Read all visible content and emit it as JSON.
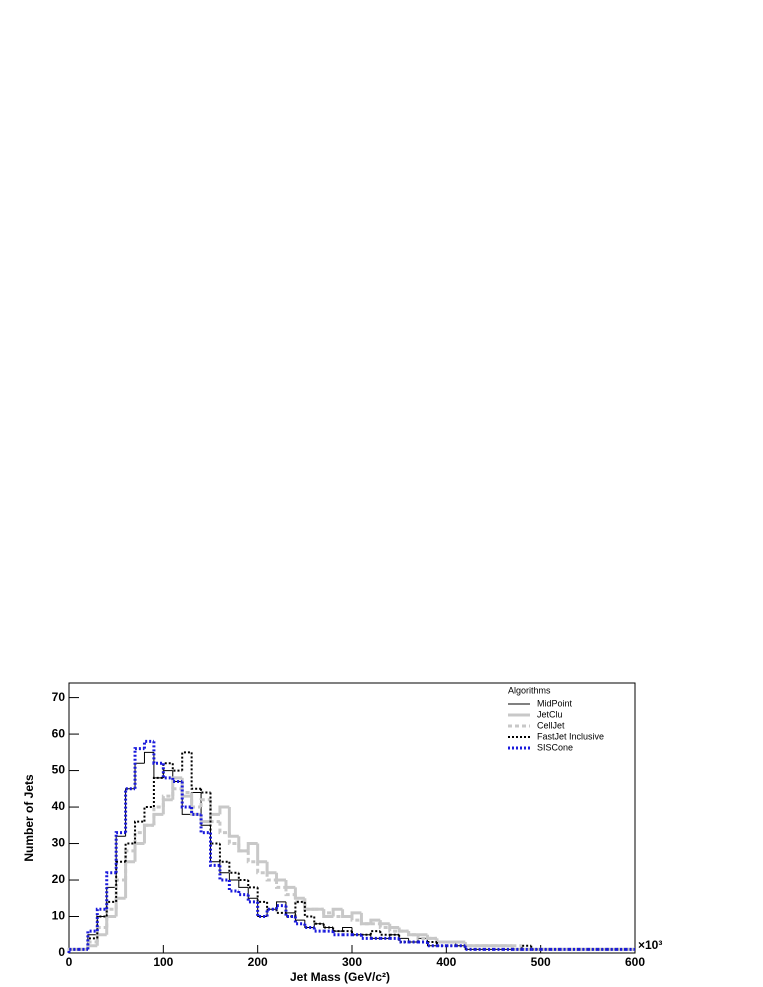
{
  "chart_data": {
    "type": "histogram",
    "x_label": "Jet Mass (GeV/c²)",
    "y_label": "Number of Jets",
    "x_multiplier": "×10³",
    "legend_title": "Algorithms",
    "legend": "top-right",
    "bins": [
      0,
      10,
      20,
      30,
      40,
      50,
      60,
      70,
      80,
      90,
      100,
      110,
      120,
      130,
      140,
      150,
      160,
      170,
      180,
      190,
      200,
      210,
      220,
      230,
      240,
      250,
      260,
      270,
      280,
      290,
      300,
      310,
      320,
      330,
      340,
      350,
      360,
      370,
      380,
      390,
      400,
      410,
      420,
      430,
      440,
      450,
      460,
      470,
      480,
      490,
      500,
      510,
      520,
      530,
      540,
      550,
      560,
      570,
      580,
      590,
      600
    ],
    "xlim": [
      0,
      600
    ],
    "xticks": [
      0,
      100,
      200,
      300,
      400,
      500,
      600
    ],
    "ylim": [
      0,
      74
    ],
    "yticks": [
      0,
      10,
      20,
      30,
      40,
      50,
      60,
      70
    ],
    "series": [
      {
        "name": "MidPoint",
        "color": "#000000",
        "values": [
          1,
          1,
          5,
          10,
          18,
          32,
          45,
          52,
          55,
          48,
          50,
          47,
          38,
          44,
          35,
          25,
          22,
          20,
          18,
          15,
          10,
          12,
          14,
          11,
          9,
          7,
          8,
          7,
          6,
          7,
          5,
          5,
          4,
          4,
          5,
          4,
          3,
          4,
          2,
          3,
          3,
          2,
          1,
          1,
          1,
          1,
          1,
          1,
          1,
          1,
          1,
          1,
          1,
          1,
          1,
          1,
          1,
          1,
          1,
          1
        ]
      },
      {
        "name": "JetClu",
        "color": "#c8c8c8",
        "values": [
          1,
          1,
          2,
          5,
          10,
          15,
          25,
          30,
          35,
          38,
          42,
          48,
          43,
          38,
          36,
          38,
          40,
          32,
          28,
          30,
          25,
          22,
          20,
          18,
          15,
          12,
          12,
          10,
          12,
          10,
          11,
          8,
          9,
          8,
          7,
          6,
          5,
          5,
          4,
          3,
          3,
          3,
          2,
          2,
          2,
          2,
          2,
          1,
          1,
          1,
          1,
          1,
          1,
          1,
          1,
          1,
          1,
          1,
          1,
          1
        ]
      },
      {
        "name": "CellJet",
        "color": "#c8c8c8",
        "values": [
          1,
          1,
          3,
          7,
          12,
          20,
          28,
          33,
          35,
          40,
          43,
          45,
          44,
          40,
          42,
          36,
          33,
          30,
          28,
          25,
          22,
          20,
          18,
          16,
          14,
          12,
          12,
          11,
          10,
          10,
          9,
          8,
          8,
          7,
          6,
          6,
          5,
          4,
          4,
          3,
          3,
          3,
          2,
          2,
          2,
          2,
          2,
          2,
          1,
          1,
          1,
          1,
          1,
          1,
          1,
          1,
          1,
          1,
          1,
          1
        ]
      },
      {
        "name": "FastJet Inclusive",
        "color": "#000000",
        "values": [
          1,
          1,
          4,
          10,
          14,
          25,
          30,
          36,
          40,
          48,
          52,
          50,
          55,
          45,
          44,
          30,
          25,
          22,
          20,
          18,
          14,
          12,
          11,
          10,
          14,
          10,
          8,
          7,
          6,
          6,
          5,
          5,
          6,
          5,
          5,
          3,
          3,
          3,
          3,
          2,
          2,
          2,
          1,
          1,
          1,
          1,
          1,
          1,
          2,
          1,
          1,
          1,
          1,
          1,
          1,
          1,
          1,
          1,
          1,
          1
        ]
      },
      {
        "name": "SISCone",
        "color": "#1a1adc",
        "values": [
          1,
          1,
          6,
          12,
          22,
          33,
          45,
          56,
          58,
          52,
          48,
          47,
          40,
          38,
          33,
          24,
          20,
          17,
          16,
          14,
          10,
          12,
          13,
          10,
          8,
          7,
          6,
          6,
          5,
          5,
          5,
          4,
          4,
          4,
          4,
          3,
          3,
          3,
          2,
          2,
          2,
          2,
          1,
          1,
          1,
          1,
          1,
          1,
          1,
          1,
          1,
          1,
          1,
          1,
          1,
          1,
          1,
          1,
          1,
          1
        ]
      }
    ]
  }
}
